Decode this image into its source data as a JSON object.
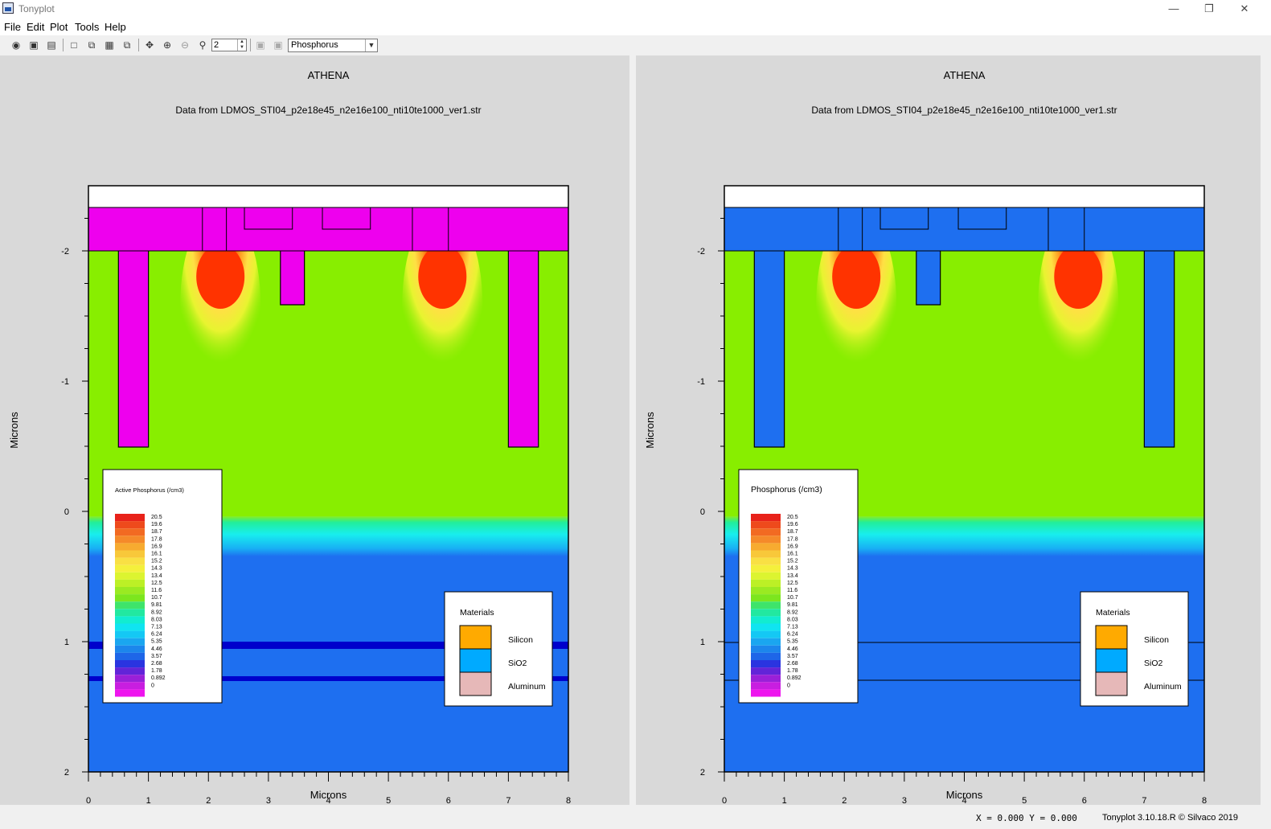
{
  "window": {
    "title": "Tonyplot",
    "minimize_icon": "minimize-icon",
    "restore_icon": "restore-icon",
    "close_icon": "close-icon"
  },
  "menu": {
    "file": "File",
    "edit": "Edit",
    "plot": "Plot",
    "tools": "Tools",
    "help": "Help"
  },
  "toolbar": {
    "zoom_value": "2",
    "quantity_select": "Phosphorus"
  },
  "plots": [
    {
      "title": "ATHENA",
      "subtitle": "Data from LDMOS_STI04_p2e18e45_n2e16e100_nti10te1000_ver1.str",
      "xlabel": "Microns",
      "ylabel": "Microns",
      "x_ticks": [
        "0",
        "1",
        "2",
        "3",
        "4",
        "5",
        "6",
        "7",
        "8"
      ],
      "y_ticks": [
        "-2",
        "-1",
        "0",
        "1",
        "2"
      ],
      "legend_title": "Active Phosphorus (/cm3)",
      "oxide_color": "#ee00ee",
      "materials_title": "Materials",
      "materials": [
        "Silicon",
        "SiO2",
        "Aluminum"
      ]
    },
    {
      "title": "ATHENA",
      "subtitle": "Data from LDMOS_STI04_p2e18e45_n2e16e100_nti10te1000_ver1.str",
      "xlabel": "Microns",
      "ylabel": "Microns",
      "x_ticks": [
        "0",
        "1",
        "2",
        "3",
        "4",
        "5",
        "6",
        "7",
        "8"
      ],
      "y_ticks": [
        "-2",
        "-1",
        "0",
        "1",
        "2"
      ],
      "legend_title": "Phosphorus (/cm3)",
      "oxide_color": "#1e6ff0",
      "materials_title": "Materials",
      "materials": [
        "Silicon",
        "SiO2",
        "Aluminum"
      ]
    }
  ],
  "contour_levels": [
    "20.5",
    "19.6",
    "18.7",
    "17.8",
    "16.9",
    "16.1",
    "15.2",
    "14.3",
    "13.4",
    "12.5",
    "11.6",
    "10.7",
    "9.81",
    "8.92",
    "8.03",
    "7.13",
    "6.24",
    "5.35",
    "4.46",
    "3.57",
    "2.68",
    "1.78",
    "0.892",
    "0"
  ],
  "contour_colors": [
    "#e8221a",
    "#ee4a1c",
    "#f26a22",
    "#f58a2a",
    "#f7ab30",
    "#f8c83a",
    "#f9e044",
    "#f4f03c",
    "#dcf430",
    "#bcf026",
    "#9aea22",
    "#7ce61e",
    "#3ee46a",
    "#22e8a0",
    "#12ecd0",
    "#10e4f0",
    "#14c8f4",
    "#1aa6f0",
    "#1c86ec",
    "#1e66e8",
    "#2a34e0",
    "#6224d8",
    "#9a20d8",
    "#c81ee0",
    "#ee14ee"
  ],
  "material_colors": {
    "Silicon": "#ffaa00",
    "SiO2": "#00aaff",
    "Aluminum": "#e6b8b8"
  },
  "status": {
    "coords": "X = 0.000 Y = 0.000",
    "version": "Tonyplot 3.10.18.R © Silvaco 2019"
  }
}
